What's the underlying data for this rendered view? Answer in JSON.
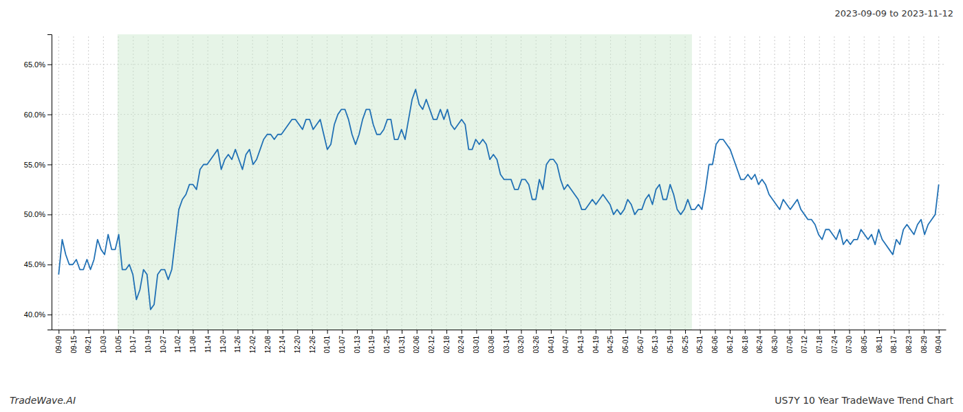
{
  "chart_data": {
    "type": "line",
    "title": "US7Y 10 Year TradeWave Trend Chart",
    "subtitle": "2023-09-09 to 2023-11-12",
    "annotations": [
      "TradeWave.AI"
    ],
    "color": "#2171b5",
    "grid": true,
    "shade": {
      "range": [
        16.666666666666668,
        179.16666666666666
      ],
      "color": "#c8e6c9"
    },
    "ylim": [
      38.5,
      68.0
    ],
    "yticks": [
      {
        "value": 40.0,
        "label": "40.0%"
      },
      {
        "value": 45.0,
        "label": "45.0%"
      },
      {
        "value": 50.0,
        "label": "50.0%"
      },
      {
        "value": 55.0,
        "label": "55.0%"
      },
      {
        "value": 60.0,
        "label": "60.0%"
      },
      {
        "value": 65.0,
        "label": "65.0%"
      }
    ],
    "xlim": [
      -2,
      251
    ],
    "xticks": [
      {
        "value": 0,
        "label": "09-09"
      },
      {
        "value": 4.2203,
        "label": "09-15"
      },
      {
        "value": 8.4407,
        "label": "09-21"
      },
      {
        "value": 12.661,
        "label": "10-03"
      },
      {
        "value": 16.8814,
        "label": "10-05"
      },
      {
        "value": 21.1017,
        "label": "10-17"
      },
      {
        "value": 25.322,
        "label": "10-19"
      },
      {
        "value": 29.5424,
        "label": "10-27"
      },
      {
        "value": 33.7627,
        "label": "11-02"
      },
      {
        "value": 37.9831,
        "label": "11-08"
      },
      {
        "value": 42.2034,
        "label": "11-14"
      },
      {
        "value": 46.4237,
        "label": "11-20"
      },
      {
        "value": 50.6441,
        "label": "11-26"
      },
      {
        "value": 54.8644,
        "label": "12-02"
      },
      {
        "value": 59.0847,
        "label": "12-08"
      },
      {
        "value": 63.3051,
        "label": "12-14"
      },
      {
        "value": 67.5254,
        "label": "12-20"
      },
      {
        "value": 71.7458,
        "label": "12-26"
      },
      {
        "value": 75.9661,
        "label": "01-01"
      },
      {
        "value": 80.1864,
        "label": "01-07"
      },
      {
        "value": 84.4068,
        "label": "01-13"
      },
      {
        "value": 88.6271,
        "label": "01-19"
      },
      {
        "value": 92.8475,
        "label": "01-25"
      },
      {
        "value": 97.0678,
        "label": "01-31"
      },
      {
        "value": 101.2881,
        "label": "02-06"
      },
      {
        "value": 105.5085,
        "label": "02-12"
      },
      {
        "value": 109.7288,
        "label": "02-18"
      },
      {
        "value": 113.9492,
        "label": "02-24"
      },
      {
        "value": 118.1695,
        "label": "03-01"
      },
      {
        "value": 122.3898,
        "label": "03-08"
      },
      {
        "value": 126.6102,
        "label": "03-14"
      },
      {
        "value": 130.8305,
        "label": "03-20"
      },
      {
        "value": 135.0508,
        "label": "03-26"
      },
      {
        "value": 139.2712,
        "label": "04-01"
      },
      {
        "value": 143.4915,
        "label": "04-07"
      },
      {
        "value": 147.7119,
        "label": "04-13"
      },
      {
        "value": 151.9322,
        "label": "04-19"
      },
      {
        "value": 156.1525,
        "label": "04-25"
      },
      {
        "value": 160.3729,
        "label": "05-01"
      },
      {
        "value": 164.5932,
        "label": "05-07"
      },
      {
        "value": 168.8136,
        "label": "05-13"
      },
      {
        "value": 173.0339,
        "label": "05-19"
      },
      {
        "value": 177.2542,
        "label": "05-25"
      },
      {
        "value": 181.4746,
        "label": "05-31"
      },
      {
        "value": 185.6949,
        "label": "06-06"
      },
      {
        "value": 189.9153,
        "label": "06-12"
      },
      {
        "value": 194.1356,
        "label": "06-18"
      },
      {
        "value": 198.3559,
        "label": "06-24"
      },
      {
        "value": 202.5763,
        "label": "06-30"
      },
      {
        "value": 206.7966,
        "label": "07-06"
      },
      {
        "value": 211.0169,
        "label": "07-12"
      },
      {
        "value": 215.2373,
        "label": "07-18"
      },
      {
        "value": 219.4576,
        "label": "07-24"
      },
      {
        "value": 223.678,
        "label": "07-30"
      },
      {
        "value": 227.8983,
        "label": "08-05"
      },
      {
        "value": 232.1186,
        "label": "08-11"
      },
      {
        "value": 236.339,
        "label": "08-17"
      },
      {
        "value": 240.5593,
        "label": "08-23"
      },
      {
        "value": 244.7797,
        "label": "08-29"
      },
      {
        "value": 249,
        "label": "09-04"
      }
    ],
    "values": [
      44.0,
      47.5,
      46.0,
      45.0,
      45.0,
      45.5,
      44.5,
      44.5,
      45.5,
      44.5,
      45.5,
      47.5,
      46.5,
      46.0,
      48.0,
      46.5,
      46.5,
      48.0,
      44.5,
      44.5,
      45.0,
      44.0,
      41.5,
      42.5,
      44.5,
      44.0,
      40.5,
      41.0,
      44.0,
      44.5,
      44.5,
      43.5,
      44.5,
      47.5,
      50.5,
      51.5,
      52.0,
      53.0,
      53.0,
      52.5,
      54.5,
      55.0,
      55.0,
      55.5,
      56.0,
      56.5,
      54.5,
      55.5,
      56.0,
      55.5,
      56.5,
      55.5,
      54.5,
      56.0,
      56.5,
      55.0,
      55.5,
      56.5,
      57.5,
      58.0,
      58.0,
      57.5,
      58.0,
      58.0,
      58.5,
      59.0,
      59.5,
      59.5,
      59.0,
      58.5,
      59.5,
      59.5,
      58.5,
      59.0,
      59.5,
      58.0,
      56.5,
      57.0,
      59.0,
      60.0,
      60.5,
      60.5,
      59.5,
      58.0,
      57.0,
      58.0,
      59.5,
      60.5,
      60.5,
      59.0,
      58.0,
      58.0,
      58.5,
      59.5,
      59.5,
      57.5,
      57.5,
      58.5,
      57.5,
      59.5,
      61.5,
      62.5,
      61.0,
      60.5,
      61.5,
      60.5,
      59.5,
      59.5,
      60.5,
      59.5,
      60.5,
      59.0,
      58.5,
      59.0,
      59.5,
      59.0,
      56.5,
      56.5,
      57.5,
      57.0,
      57.5,
      57.0,
      55.5,
      56.0,
      55.5,
      54.0,
      53.5,
      53.5,
      53.5,
      52.5,
      52.5,
      53.5,
      53.5,
      53.0,
      51.5,
      51.5,
      53.5,
      52.5,
      55.0,
      55.5,
      55.5,
      55.0,
      53.5,
      52.5,
      53.0,
      52.5,
      52.0,
      51.5,
      50.5,
      50.5,
      51.0,
      51.5,
      51.0,
      51.5,
      52.0,
      51.5,
      51.0,
      50.0,
      50.5,
      50.0,
      50.5,
      51.5,
      51.0,
      50.0,
      50.5,
      50.5,
      51.5,
      52.0,
      51.0,
      52.5,
      53.0,
      51.5,
      51.5,
      53.0,
      52.0,
      50.5,
      50.0,
      50.5,
      51.5,
      50.5,
      50.5,
      51.0,
      50.5,
      52.5,
      55.0,
      55.0,
      57.0,
      57.5,
      57.5,
      57.0,
      56.5,
      55.5,
      54.5,
      53.5,
      53.5,
      54.0,
      53.5,
      54.0,
      53.0,
      53.5,
      53.0,
      52.0,
      51.5,
      51.0,
      50.5,
      51.5,
      51.0,
      50.5,
      51.0,
      51.5,
      50.5,
      50.0,
      49.5,
      49.5,
      49.0,
      48.0,
      47.5,
      48.5,
      48.5,
      48.0,
      47.5,
      48.5,
      47.0,
      47.5,
      47.0,
      47.5,
      47.5,
      48.5,
      48.0,
      47.5,
      48.0,
      47.0,
      48.5,
      47.5,
      47.0,
      46.5,
      46.0,
      47.5,
      47.0,
      48.5,
      49.0,
      48.5,
      48.0,
      49.0,
      49.5,
      48.0,
      49.0,
      49.5,
      50.0,
      53.0
    ]
  }
}
